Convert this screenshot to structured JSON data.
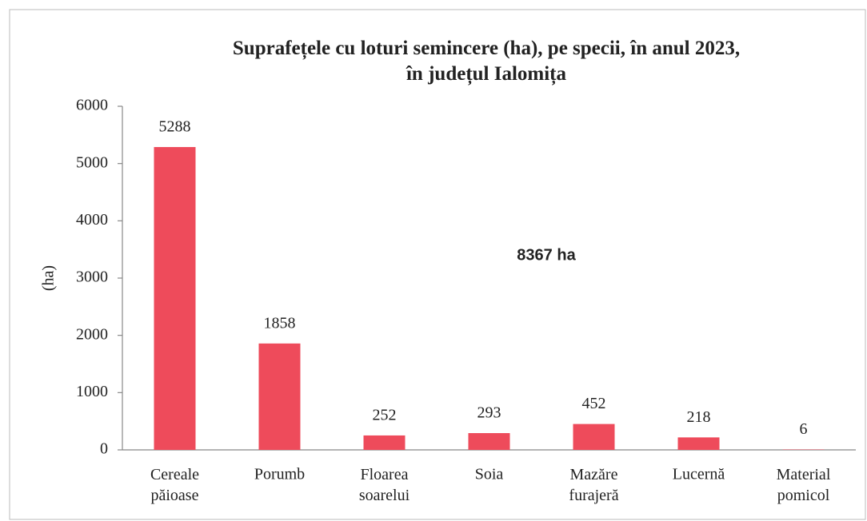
{
  "chart_data": {
    "type": "bar",
    "title": "Suprafețele cu loturi semincere (ha), pe specii, în anul 2023,\nîn județul Ialomița",
    "y_label": "(ha)",
    "annotation": "8367 ha",
    "categories": [
      "Cereale păioase",
      "Porumb",
      "Floarea soarelui",
      "Soia",
      "Mazăre furajeră",
      "Lucernă",
      "Material pomicol"
    ],
    "values": [
      5288,
      1858,
      252,
      293,
      452,
      218,
      6
    ],
    "color": "#ee4b5b",
    "ylim": [
      0,
      6000
    ],
    "yticks": [
      0,
      1000,
      2000,
      3000,
      4000,
      5000,
      6000
    ],
    "grid": false
  }
}
